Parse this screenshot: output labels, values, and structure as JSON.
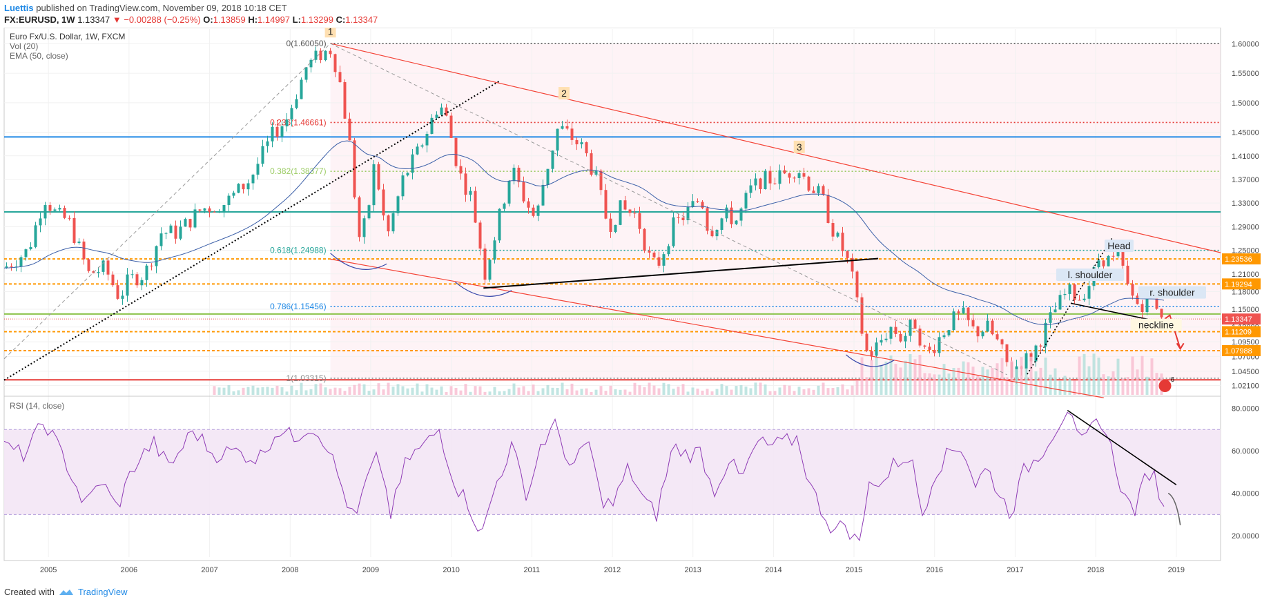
{
  "header": {
    "author": "Luettis",
    "published": "published on TradingView.com, November 09, 2018 10:18 CET",
    "symbol": "FX:EURUSD, 1W",
    "last": "1.13347",
    "arrow": "▼",
    "change": "−0.00288 (−0.25%)",
    "o_label": "O:",
    "o_value": "1.13859",
    "h_label": "H:",
    "h_value": "1.14997",
    "l_label": "L:",
    "l_value": "1.13299",
    "c_label": "C:",
    "c_value": "1.13347"
  },
  "footer": {
    "created_with": "Created with",
    "brand": "TradingView"
  },
  "colors": {
    "up": "#26a69a",
    "down": "#ef5350",
    "ema": "#3b5fa8",
    "rsi": "#8e3ab5",
    "fib_line": "#1e88e5",
    "orange": "#ff9800",
    "channel": "#f44336",
    "badge_bg": "#ffe0b2"
  },
  "chart_data": {
    "type": "candlestick",
    "title": "Euro Fx/U.S. Dollar, 1W, FXCM",
    "legend": [
      "Vol (20)",
      "EMA (50, close)"
    ],
    "rsi_label": "RSI (14, close)",
    "price_ylim": [
      1.005,
      1.625
    ],
    "price_ticks": [
      "1.60000",
      "1.55000",
      "1.50000",
      "1.45000",
      "1.41000",
      "1.37000",
      "1.33000",
      "1.29000",
      "1.25000",
      "1.21000",
      "1.18000",
      "1.15000",
      "1.12000",
      "1.09500",
      "1.07000",
      "1.04500",
      "1.02100"
    ],
    "rsi_ticks": [
      "80.0000",
      "60.0000",
      "40.0000",
      "20.0000"
    ],
    "years": [
      "2005",
      "2006",
      "2007",
      "2008",
      "2009",
      "2010",
      "2011",
      "2012",
      "2013",
      "2014",
      "2015",
      "2016",
      "2017",
      "2018",
      "2019"
    ],
    "x_range": [
      2004.45,
      2019.55
    ],
    "price_series": [
      [
        2004.45,
        1.22
      ],
      [
        2004.75,
        1.25
      ],
      [
        2004.95,
        1.34
      ],
      [
        2005.1,
        1.31
      ],
      [
        2005.25,
        1.3
      ],
      [
        2005.5,
        1.21
      ],
      [
        2005.7,
        1.22
      ],
      [
        2005.88,
        1.17
      ],
      [
        2006.0,
        1.2
      ],
      [
        2006.2,
        1.21
      ],
      [
        2006.4,
        1.28
      ],
      [
        2006.6,
        1.28
      ],
      [
        2006.9,
        1.32
      ],
      [
        2007.2,
        1.33
      ],
      [
        2007.5,
        1.37
      ],
      [
        2007.8,
        1.45
      ],
      [
        2007.95,
        1.47
      ],
      [
        2008.2,
        1.56
      ],
      [
        2008.35,
        1.58
      ],
      [
        2008.5,
        1.59
      ],
      [
        2008.6,
        1.55
      ],
      [
        2008.75,
        1.42
      ],
      [
        2008.85,
        1.27
      ],
      [
        2008.95,
        1.3
      ],
      [
        2009.05,
        1.4
      ],
      [
        2009.2,
        1.27
      ],
      [
        2009.4,
        1.37
      ],
      [
        2009.6,
        1.42
      ],
      [
        2009.85,
        1.5
      ],
      [
        2009.95,
        1.47
      ],
      [
        2010.1,
        1.38
      ],
      [
        2010.25,
        1.34
      ],
      [
        2010.42,
        1.21
      ],
      [
        2010.55,
        1.28
      ],
      [
        2010.75,
        1.39
      ],
      [
        2010.9,
        1.34
      ],
      [
        2011.05,
        1.3
      ],
      [
        2011.15,
        1.37
      ],
      [
        2011.33,
        1.46
      ],
      [
        2011.5,
        1.44
      ],
      [
        2011.65,
        1.42
      ],
      [
        2011.8,
        1.37
      ],
      [
        2011.95,
        1.29
      ],
      [
        2012.1,
        1.32
      ],
      [
        2012.3,
        1.31
      ],
      [
        2012.45,
        1.24
      ],
      [
        2012.55,
        1.22
      ],
      [
        2012.75,
        1.29
      ],
      [
        2012.9,
        1.31
      ],
      [
        2013.1,
        1.34
      ],
      [
        2013.2,
        1.28
      ],
      [
        2013.4,
        1.31
      ],
      [
        2013.55,
        1.3
      ],
      [
        2013.7,
        1.35
      ],
      [
        2013.85,
        1.37
      ],
      [
        2014.0,
        1.37
      ],
      [
        2014.15,
        1.38
      ],
      [
        2014.3,
        1.39
      ],
      [
        2014.45,
        1.36
      ],
      [
        2014.6,
        1.34
      ],
      [
        2014.75,
        1.28
      ],
      [
        2014.9,
        1.24
      ],
      [
        2015.0,
        1.19
      ],
      [
        2015.07,
        1.13
      ],
      [
        2015.17,
        1.07
      ],
      [
        2015.3,
        1.09
      ],
      [
        2015.45,
        1.12
      ],
      [
        2015.6,
        1.1
      ],
      [
        2015.75,
        1.13
      ],
      [
        2015.9,
        1.07
      ],
      [
        2016.0,
        1.09
      ],
      [
        2016.2,
        1.13
      ],
      [
        2016.35,
        1.14
      ],
      [
        2016.5,
        1.11
      ],
      [
        2016.65,
        1.12
      ],
      [
        2016.8,
        1.09
      ],
      [
        2016.95,
        1.04
      ],
      [
        2017.05,
        1.06
      ],
      [
        2017.2,
        1.07
      ],
      [
        2017.35,
        1.11
      ],
      [
        2017.5,
        1.15
      ],
      [
        2017.65,
        1.18
      ],
      [
        2017.8,
        1.17
      ],
      [
        2017.95,
        1.2
      ],
      [
        2018.05,
        1.24
      ],
      [
        2018.2,
        1.23
      ],
      [
        2018.3,
        1.24
      ],
      [
        2018.38,
        1.19
      ],
      [
        2018.5,
        1.16
      ],
      [
        2018.6,
        1.16
      ],
      [
        2018.7,
        1.17
      ],
      [
        2018.8,
        1.15
      ],
      [
        2018.86,
        1.133
      ]
    ],
    "rsi_series": [
      [
        2004.45,
        62
      ],
      [
        2004.7,
        58
      ],
      [
        2004.95,
        74
      ],
      [
        2005.2,
        56
      ],
      [
        2005.45,
        34
      ],
      [
        2005.65,
        46
      ],
      [
        2005.85,
        33
      ],
      [
        2006.05,
        52
      ],
      [
        2006.3,
        64
      ],
      [
        2006.5,
        52
      ],
      [
        2006.8,
        70
      ],
      [
        2007.05,
        58
      ],
      [
        2007.3,
        60
      ],
      [
        2007.6,
        56
      ],
      [
        2007.85,
        70
      ],
      [
        2008.05,
        66
      ],
      [
        2008.25,
        72
      ],
      [
        2008.45,
        64
      ],
      [
        2008.65,
        42
      ],
      [
        2008.8,
        26
      ],
      [
        2008.95,
        46
      ],
      [
        2009.1,
        58
      ],
      [
        2009.25,
        30
      ],
      [
        2009.45,
        56
      ],
      [
        2009.65,
        62
      ],
      [
        2009.85,
        70
      ],
      [
        2010.05,
        44
      ],
      [
        2010.2,
        36
      ],
      [
        2010.38,
        20
      ],
      [
        2010.55,
        44
      ],
      [
        2010.75,
        62
      ],
      [
        2010.95,
        38
      ],
      [
        2011.1,
        62
      ],
      [
        2011.3,
        72
      ],
      [
        2011.5,
        50
      ],
      [
        2011.7,
        66
      ],
      [
        2011.85,
        38
      ],
      [
        2012.0,
        34
      ],
      [
        2012.2,
        52
      ],
      [
        2012.4,
        36
      ],
      [
        2012.55,
        30
      ],
      [
        2012.75,
        62
      ],
      [
        2012.95,
        58
      ],
      [
        2013.1,
        60
      ],
      [
        2013.25,
        40
      ],
      [
        2013.45,
        56
      ],
      [
        2013.6,
        46
      ],
      [
        2013.8,
        64
      ],
      [
        2013.95,
        62
      ],
      [
        2014.15,
        64
      ],
      [
        2014.3,
        66
      ],
      [
        2014.45,
        44
      ],
      [
        2014.6,
        32
      ],
      [
        2014.75,
        22
      ],
      [
        2014.9,
        26
      ],
      [
        2015.0,
        18
      ],
      [
        2015.1,
        20
      ],
      [
        2015.2,
        48
      ],
      [
        2015.35,
        44
      ],
      [
        2015.5,
        54
      ],
      [
        2015.7,
        58
      ],
      [
        2015.85,
        30
      ],
      [
        2016.0,
        50
      ],
      [
        2016.2,
        60
      ],
      [
        2016.35,
        62
      ],
      [
        2016.5,
        44
      ],
      [
        2016.65,
        52
      ],
      [
        2016.8,
        40
      ],
      [
        2016.95,
        30
      ],
      [
        2017.1,
        50
      ],
      [
        2017.3,
        58
      ],
      [
        2017.5,
        70
      ],
      [
        2017.65,
        80
      ],
      [
        2017.8,
        62
      ],
      [
        2017.95,
        70
      ],
      [
        2018.05,
        76
      ],
      [
        2018.2,
        60
      ],
      [
        2018.35,
        38
      ],
      [
        2018.5,
        32
      ],
      [
        2018.6,
        46
      ],
      [
        2018.7,
        52
      ],
      [
        2018.8,
        38
      ],
      [
        2018.86,
        36
      ]
    ],
    "fib_levels": [
      {
        "label": "0(1.60050)",
        "value": 1.6005,
        "color": "#555555"
      },
      {
        "label": "0.236(1.46661)",
        "value": 1.46661,
        "color": "#e53935"
      },
      {
        "label": "0.382(1.38377)",
        "value": 1.38377,
        "color": "#9ccc65"
      },
      {
        "label": "0.618(1.24988)",
        "value": 1.24988,
        "color": "#26a69a"
      },
      {
        "label": "0.786(1.15456)",
        "value": 1.15456,
        "color": "#1e88e5"
      },
      {
        "label": "1(1.03315)",
        "value": 1.03315,
        "color": "#888888"
      }
    ],
    "horizontal_lines": [
      {
        "value": 1.442,
        "color": "#1e88e5"
      },
      {
        "value": 1.315,
        "color": "#26a69a"
      },
      {
        "value": 1.142,
        "color": "#8bc34a"
      },
      {
        "value": 1.0305,
        "color": "#e53935"
      }
    ],
    "price_labels": [
      {
        "label": "1.23536",
        "value": 1.23536,
        "color": "#ff9800"
      },
      {
        "label": "1.19294",
        "value": 1.19294,
        "color": "#ff9800"
      },
      {
        "label": "1.13347",
        "value": 1.13347,
        "color": "#ef5350"
      },
      {
        "label": "1.11209",
        "value": 1.11209,
        "color": "#ff9800"
      },
      {
        "label": "1.07988",
        "value": 1.07988,
        "color": "#ff9800"
      }
    ],
    "wave_labels": [
      {
        "label": "1",
        "x": 2008.5,
        "y": 1.62
      },
      {
        "label": "2",
        "x": 2011.4,
        "y": 1.515
      },
      {
        "label": "3",
        "x": 2014.32,
        "y": 1.424
      }
    ],
    "pattern_labels": [
      {
        "label": "Head",
        "x": 2018.29,
        "y": 1.254
      },
      {
        "label": "l. shoulder",
        "x": 2017.93,
        "y": 1.205
      },
      {
        "label": "r. shoulder",
        "x": 2018.95,
        "y": 1.175
      },
      {
        "label": "neckline",
        "x": 2018.75,
        "y": 1.12
      }
    ],
    "events_badge": "6",
    "rsi_ylim": [
      10,
      85
    ]
  }
}
